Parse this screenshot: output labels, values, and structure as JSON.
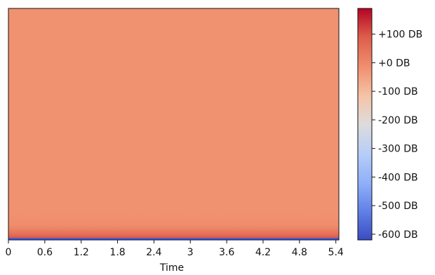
{
  "chart_data": {
    "type": "heatmap",
    "title": "",
    "xlabel": "Time",
    "ylabel": "",
    "x_ticks": [
      "0",
      "0.6",
      "1.2",
      "1.8",
      "2.4",
      "3",
      "3.6",
      "4.2",
      "4.8",
      "5.4"
    ],
    "x_tick_values": [
      0,
      0.6,
      1.2,
      1.8,
      2.4,
      3.0,
      3.6,
      4.2,
      4.8,
      5.4
    ],
    "xlim": [
      0,
      5.45
    ],
    "dominant_value_db": 0,
    "colorbar": {
      "colormap": "coolwarm",
      "range": [
        -620,
        190
      ],
      "tick_labels": [
        "+100 DB",
        "+0 DB",
        "-100 DB",
        "-200 DB",
        "-300 DB",
        "-400 DB",
        "-500 DB",
        "-600 DB"
      ],
      "tick_values": [
        100,
        0,
        -100,
        -200,
        -300,
        -400,
        -500,
        -600
      ]
    },
    "grid": false
  }
}
